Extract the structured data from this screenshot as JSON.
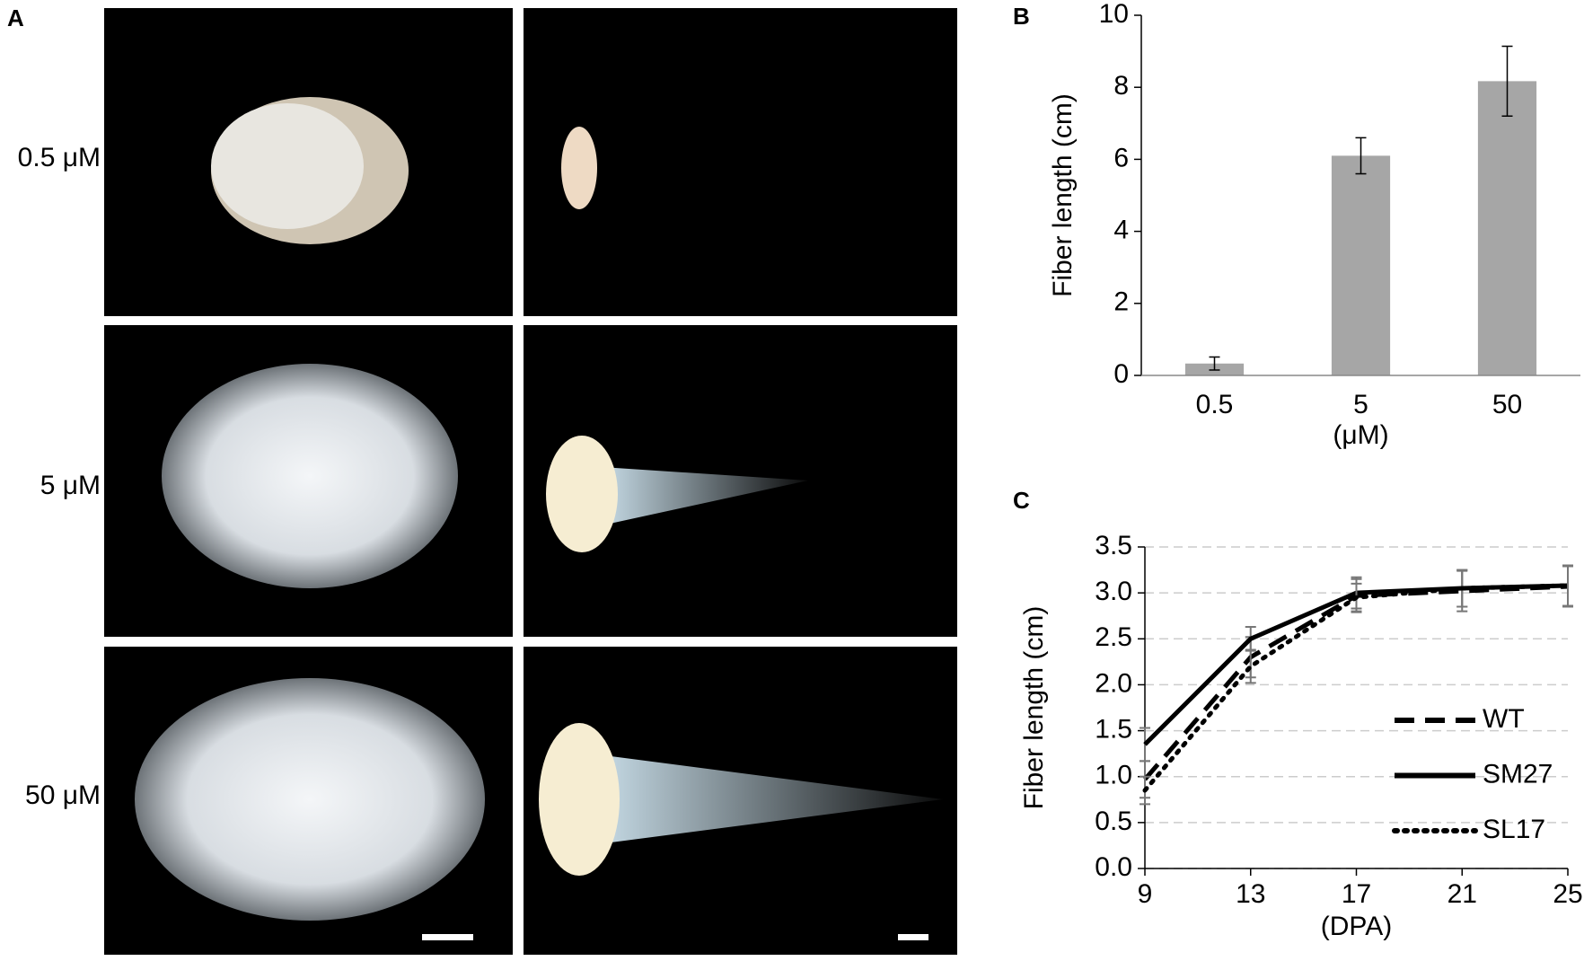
{
  "panel_a": {
    "label": "A",
    "rows": [
      "0.5 μM",
      "5 μM",
      "50 μM"
    ]
  },
  "chart_data": [
    {
      "type": "bar",
      "panel_label": "B",
      "y_label": "Fiber length (cm)",
      "x_label": "(μM)",
      "categories": [
        "0.5",
        "5",
        "50"
      ],
      "values": [
        0.33,
        6.1,
        8.17
      ],
      "errors": [
        0.18,
        0.5,
        0.97
      ],
      "color": "#a6a6a6",
      "ylim": [
        0,
        10
      ],
      "yticks": [
        0,
        2,
        4,
        6,
        8,
        10
      ],
      "grid": false
    },
    {
      "type": "line",
      "panel_label": "C",
      "y_label": "Fiber length (cm)",
      "x_label": "(DPA)",
      "x": [
        9,
        13,
        17,
        21,
        25
      ],
      "xlim": [
        9,
        25
      ],
      "xticks": [
        9,
        13,
        17,
        21,
        25
      ],
      "ylim": [
        0,
        3.5
      ],
      "yticks": [
        {
          "value": 0,
          "label": "0.0"
        },
        {
          "value": 0.5,
          "label": "0.5"
        },
        {
          "value": 1,
          "label": "1.0"
        },
        {
          "value": 1.5,
          "label": "1.5"
        },
        {
          "value": 2,
          "label": "2.0"
        },
        {
          "value": 2.5,
          "label": "2.5"
        },
        {
          "value": 3,
          "label": "3.0"
        },
        {
          "value": 3.5,
          "label": "3.5"
        }
      ],
      "grid": true,
      "legend": "right",
      "series": [
        {
          "name": "WT",
          "color": "#000000",
          "style": "dashed",
          "values": [
            0.97,
            2.3,
            2.97,
            3.02,
            3.07
          ],
          "errors": [
            0.2,
            0.22,
            0.18,
            0.22,
            0.22
          ]
        },
        {
          "name": "SM27",
          "color": "#000000",
          "style": "solid",
          "values": [
            1.35,
            2.5,
            3.0,
            3.05,
            3.08
          ],
          "errors": [
            0.18,
            0.13,
            0.17,
            0.2,
            0.22
          ]
        },
        {
          "name": "SL17",
          "color": "#000000",
          "style": "dotted",
          "values": [
            0.85,
            2.2,
            2.95,
            3.05,
            3.08
          ],
          "errors": [
            0.15,
            0.18,
            0.15,
            0.2,
            0.22
          ]
        }
      ]
    }
  ]
}
